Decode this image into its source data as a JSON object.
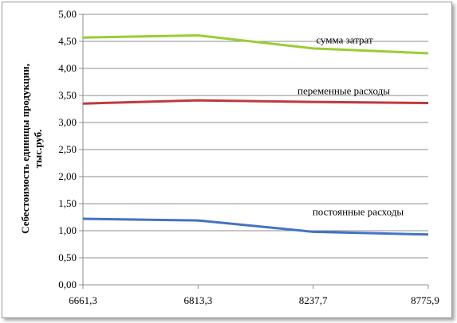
{
  "chart_data": {
    "type": "line",
    "title": "",
    "xlabel": "",
    "ylabel_lines": [
      "Себестоимость единицы продукции,",
      "тыс.руб."
    ],
    "categories": [
      "6661,3",
      "6813,3",
      "8237,7",
      "8775,9"
    ],
    "ylim": [
      0,
      5
    ],
    "yticks": [
      "0,00",
      "0,50",
      "1,00",
      "1,50",
      "2,00",
      "2,50",
      "3,00",
      "3,50",
      "4,00",
      "4,50",
      "5,00"
    ],
    "grid": true,
    "legend": "none",
    "series": [
      {
        "name": "сумма затрат",
        "color": "#9acd32",
        "values": [
          4.57,
          4.61,
          4.37,
          4.28
        ]
      },
      {
        "name": "переменные расходы",
        "color": "#c0393b",
        "values": [
          3.35,
          3.41,
          3.38,
          3.36
        ]
      },
      {
        "name": "постоянные расходы",
        "color": "#4472c4",
        "values": [
          1.22,
          1.19,
          0.98,
          0.93
        ]
      }
    ]
  }
}
